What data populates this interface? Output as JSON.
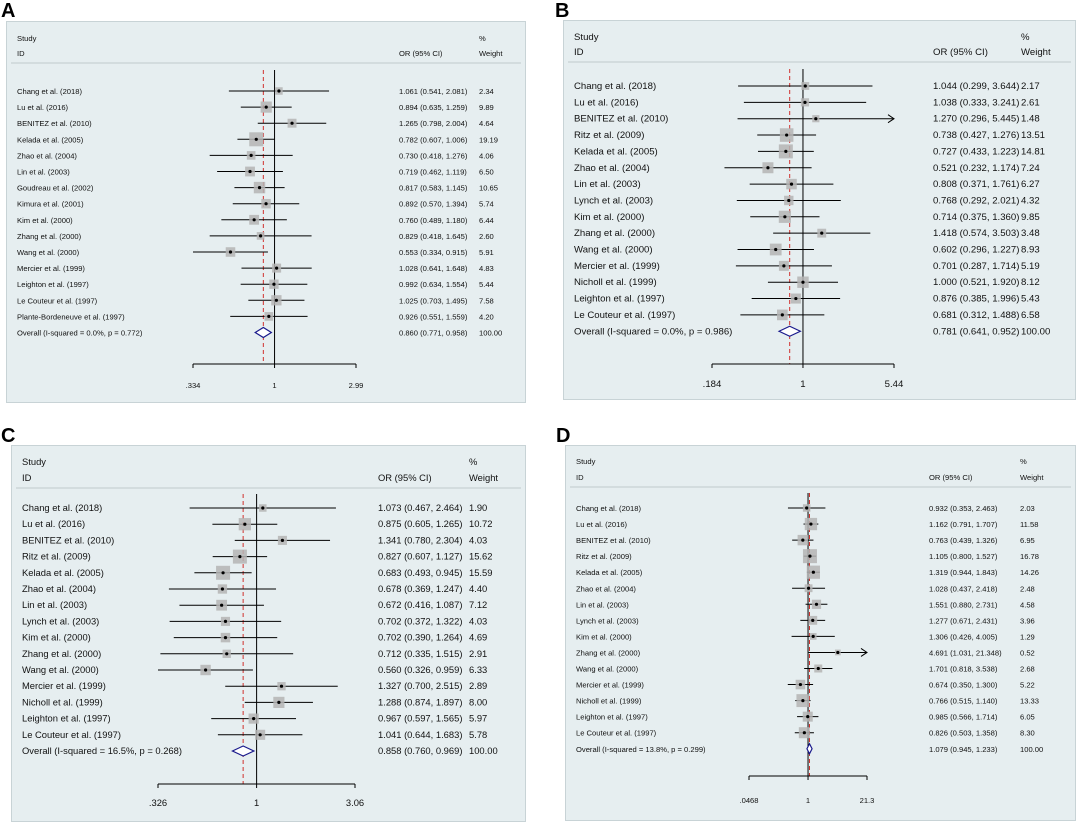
{
  "chart_data": [
    {
      "panel": "A",
      "type": "forest",
      "scale": "log",
      "header": {
        "study": "Study",
        "id": "ID",
        "or": "OR (95% CI)",
        "pct": "%",
        "weight": "Weight"
      },
      "xticks": [
        {
          "v": 0.334,
          "label": ".334"
        },
        {
          "v": 1,
          "label": "1"
        },
        {
          "v": 2.99,
          "label": "2.99"
        }
      ],
      "xlim": [
        0.334,
        2.99
      ],
      "null_line": 1,
      "pooled_line": 0.86,
      "studies": [
        {
          "id": "Chang et al. (2018)",
          "or": 1.061,
          "lo": 0.541,
          "hi": 2.081,
          "ci": "1.061 (0.541, 2.081)",
          "w": "2.34"
        },
        {
          "id": "Lu et al. (2016)",
          "or": 0.894,
          "lo": 0.635,
          "hi": 1.259,
          "ci": "0.894 (0.635, 1.259)",
          "w": "9.89"
        },
        {
          "id": "BENITEZ et al. (2010)",
          "or": 1.265,
          "lo": 0.798,
          "hi": 2.004,
          "ci": "1.265 (0.798, 2.004)",
          "w": "4.64"
        },
        {
          "id": "Kelada et al. (2005)",
          "or": 0.782,
          "lo": 0.607,
          "hi": 1.006,
          "ci": "0.782 (0.607, 1.006)",
          "w": "19.19"
        },
        {
          "id": "Zhao et al. (2004)",
          "or": 0.73,
          "lo": 0.418,
          "hi": 1.276,
          "ci": "0.730 (0.418, 1.276)",
          "w": "4.06"
        },
        {
          "id": "Lin et al. (2003)",
          "or": 0.719,
          "lo": 0.462,
          "hi": 1.119,
          "ci": "0.719 (0.462, 1.119)",
          "w": "6.50"
        },
        {
          "id": "Goudreau et al. (2002)",
          "or": 0.817,
          "lo": 0.583,
          "hi": 1.145,
          "ci": "0.817 (0.583, 1.145)",
          "w": "10.65"
        },
        {
          "id": "Kimura et al. (2001)",
          "or": 0.892,
          "lo": 0.57,
          "hi": 1.394,
          "ci": "0.892 (0.570, 1.394)",
          "w": "5.74"
        },
        {
          "id": "Kim et al. (2000)",
          "or": 0.76,
          "lo": 0.489,
          "hi": 1.18,
          "ci": "0.760 (0.489, 1.180)",
          "w": "6.44"
        },
        {
          "id": "Zhang et al. (2000)",
          "or": 0.829,
          "lo": 0.418,
          "hi": 1.645,
          "ci": "0.829 (0.418, 1.645)",
          "w": "2.60"
        },
        {
          "id": "Wang et al. (2000)",
          "or": 0.553,
          "lo": 0.334,
          "hi": 0.915,
          "ci": "0.553 (0.334, 0.915)",
          "w": "5.91"
        },
        {
          "id": "Mercier et al. (1999)",
          "or": 1.028,
          "lo": 0.641,
          "hi": 1.648,
          "ci": "1.028 (0.641, 1.648)",
          "w": "4.83"
        },
        {
          "id": "Leighton et al. (1997)",
          "or": 0.992,
          "lo": 0.634,
          "hi": 1.554,
          "ci": "0.992 (0.634, 1.554)",
          "w": "5.44"
        },
        {
          "id": "Le Couteur et al. (1997)",
          "or": 1.025,
          "lo": 0.703,
          "hi": 1.495,
          "ci": "1.025 (0.703, 1.495)",
          "w": "7.58"
        },
        {
          "id": "Plante-Bordeneuve et al. (1997)",
          "or": 0.926,
          "lo": 0.551,
          "hi": 1.559,
          "ci": "0.926 (0.551, 1.559)",
          "w": "4.20"
        }
      ],
      "overall": {
        "label": "Overall  (I-squared = 0.0%, p = 0.772)",
        "or": 0.86,
        "lo": 0.771,
        "hi": 0.958,
        "ci": "0.860 (0.771, 0.958)",
        "w": "100.00"
      }
    },
    {
      "panel": "B",
      "type": "forest",
      "scale": "log",
      "header": {
        "study": "Study",
        "id": "ID",
        "or": "OR (95% CI)",
        "pct": "%",
        "weight": "Weight"
      },
      "xticks": [
        {
          "v": 0.184,
          "label": ".184"
        },
        {
          "v": 1,
          "label": "1"
        },
        {
          "v": 5.44,
          "label": "5.44"
        }
      ],
      "xlim": [
        0.184,
        5.44
      ],
      "null_line": 1,
      "pooled_line": 0.781,
      "studies": [
        {
          "id": "Chang et al. (2018)",
          "or": 1.044,
          "lo": 0.299,
          "hi": 3.644,
          "ci": "1.044 (0.299, 3.644)",
          "w": "2.17"
        },
        {
          "id": "Lu et al. (2016)",
          "or": 1.038,
          "lo": 0.333,
          "hi": 3.241,
          "ci": "1.038 (0.333, 3.241)",
          "w": "2.61"
        },
        {
          "id": "BENITEZ et al. (2010)",
          "or": 1.27,
          "lo": 0.296,
          "hi": 5.445,
          "ci": "1.270 (0.296, 5.445)",
          "w": "1.48"
        },
        {
          "id": "Ritz et al. (2009)",
          "or": 0.738,
          "lo": 0.427,
          "hi": 1.276,
          "ci": "0.738 (0.427, 1.276)",
          "w": "13.51"
        },
        {
          "id": "Kelada et al. (2005)",
          "or": 0.727,
          "lo": 0.433,
          "hi": 1.223,
          "ci": "0.727 (0.433, 1.223)",
          "w": "14.81"
        },
        {
          "id": "Zhao et al. (2004)",
          "or": 0.521,
          "lo": 0.232,
          "hi": 1.174,
          "ci": "0.521 (0.232, 1.174)",
          "w": "7.24"
        },
        {
          "id": "Lin et al. (2003)",
          "or": 0.808,
          "lo": 0.371,
          "hi": 1.761,
          "ci": "0.808 (0.371, 1.761)",
          "w": "6.27"
        },
        {
          "id": "Lynch et al. (2003)",
          "or": 0.768,
          "lo": 0.292,
          "hi": 2.021,
          "ci": "0.768 (0.292, 2.021)",
          "w": "4.32"
        },
        {
          "id": "Kim et al. (2000)",
          "or": 0.714,
          "lo": 0.375,
          "hi": 1.36,
          "ci": "0.714 (0.375, 1.360)",
          "w": "9.85"
        },
        {
          "id": "Zhang et al. (2000)",
          "or": 1.418,
          "lo": 0.574,
          "hi": 3.503,
          "ci": "1.418 (0.574, 3.503)",
          "w": "3.48"
        },
        {
          "id": "Wang et al. (2000)",
          "or": 0.602,
          "lo": 0.296,
          "hi": 1.227,
          "ci": "0.602 (0.296, 1.227)",
          "w": "8.93"
        },
        {
          "id": "Mercier et al. (1999)",
          "or": 0.701,
          "lo": 0.287,
          "hi": 1.714,
          "ci": "0.701 (0.287, 1.714)",
          "w": "5.19"
        },
        {
          "id": "Nicholl et al. (1999)",
          "or": 1.0,
          "lo": 0.521,
          "hi": 1.92,
          "ci": "1.000 (0.521, 1.920)",
          "w": "8.12"
        },
        {
          "id": "Leighton et al. (1997)",
          "or": 0.876,
          "lo": 0.385,
          "hi": 1.996,
          "ci": "0.876 (0.385, 1.996)",
          "w": "5.43"
        },
        {
          "id": "Le Couteur et al. (1997)",
          "or": 0.681,
          "lo": 0.312,
          "hi": 1.488,
          "ci": "0.681 (0.312, 1.488)",
          "w": "6.58"
        }
      ],
      "overall": {
        "label": "Overall  (I-squared = 0.0%, p = 0.986)",
        "or": 0.781,
        "lo": 0.641,
        "hi": 0.952,
        "ci": "0.781 (0.641, 0.952)",
        "w": "100.00"
      }
    },
    {
      "panel": "C",
      "type": "forest",
      "scale": "log",
      "header": {
        "study": "Study",
        "id": "ID",
        "or": "OR (95% CI)",
        "pct": "%",
        "weight": "Weight"
      },
      "xticks": [
        {
          "v": 0.326,
          "label": ".326"
        },
        {
          "v": 1,
          "label": "1"
        },
        {
          "v": 3.06,
          "label": "3.06"
        }
      ],
      "xlim": [
        0.326,
        3.06
      ],
      "null_line": 1,
      "pooled_line": 0.858,
      "studies": [
        {
          "id": "Chang et al. (2018)",
          "or": 1.073,
          "lo": 0.467,
          "hi": 2.464,
          "ci": "1.073 (0.467, 2.464)",
          "w": "1.90"
        },
        {
          "id": "Lu et al. (2016)",
          "or": 0.875,
          "lo": 0.605,
          "hi": 1.265,
          "ci": "0.875 (0.605, 1.265)",
          "w": "10.72"
        },
        {
          "id": "BENITEZ et al. (2010)",
          "or": 1.341,
          "lo": 0.78,
          "hi": 2.304,
          "ci": "1.341 (0.780, 2.304)",
          "w": "4.03"
        },
        {
          "id": "Ritz et al. (2009)",
          "or": 0.827,
          "lo": 0.607,
          "hi": 1.127,
          "ci": "0.827 (0.607, 1.127)",
          "w": "15.62"
        },
        {
          "id": "Kelada et al. (2005)",
          "or": 0.683,
          "lo": 0.493,
          "hi": 0.945,
          "ci": "0.683 (0.493, 0.945)",
          "w": "15.59"
        },
        {
          "id": "Zhao et al. (2004)",
          "or": 0.678,
          "lo": 0.369,
          "hi": 1.247,
          "ci": "0.678 (0.369, 1.247)",
          "w": "4.40"
        },
        {
          "id": "Lin et al. (2003)",
          "or": 0.672,
          "lo": 0.416,
          "hi": 1.087,
          "ci": "0.672 (0.416, 1.087)",
          "w": "7.12"
        },
        {
          "id": "Lynch et al. (2003)",
          "or": 0.702,
          "lo": 0.372,
          "hi": 1.322,
          "ci": "0.702 (0.372, 1.322)",
          "w": "4.03"
        },
        {
          "id": "Kim et al. (2000)",
          "or": 0.702,
          "lo": 0.39,
          "hi": 1.264,
          "ci": "0.702 (0.390, 1.264)",
          "w": "4.69"
        },
        {
          "id": "Zhang et al. (2000)",
          "or": 0.712,
          "lo": 0.335,
          "hi": 1.515,
          "ci": "0.712 (0.335, 1.515)",
          "w": "2.91"
        },
        {
          "id": "Wang et al. (2000)",
          "or": 0.56,
          "lo": 0.326,
          "hi": 0.959,
          "ci": "0.560 (0.326, 0.959)",
          "w": "6.33"
        },
        {
          "id": "Mercier et al. (1999)",
          "or": 1.327,
          "lo": 0.7,
          "hi": 2.515,
          "ci": "1.327 (0.700, 2.515)",
          "w": "2.89"
        },
        {
          "id": "Nicholl et al. (1999)",
          "or": 1.288,
          "lo": 0.874,
          "hi": 1.897,
          "ci": "1.288 (0.874, 1.897)",
          "w": "8.00"
        },
        {
          "id": "Leighton et al. (1997)",
          "or": 0.967,
          "lo": 0.597,
          "hi": 1.565,
          "ci": "0.967 (0.597, 1.565)",
          "w": "5.97"
        },
        {
          "id": "Le Couteur et al. (1997)",
          "or": 1.041,
          "lo": 0.644,
          "hi": 1.683,
          "ci": "1.041 (0.644, 1.683)",
          "w": "5.78"
        }
      ],
      "overall": {
        "label": "Overall  (I-squared = 16.5%, p = 0.268)",
        "or": 0.858,
        "lo": 0.76,
        "hi": 0.969,
        "ci": "0.858 (0.760, 0.969)",
        "w": "100.00"
      }
    },
    {
      "panel": "D",
      "type": "forest",
      "scale": "log",
      "header": {
        "study": "Study",
        "id": "ID",
        "or": "OR (95% CI)",
        "pct": "%",
        "weight": "Weight"
      },
      "xticks": [
        {
          "v": 0.0468,
          "label": ".0468"
        },
        {
          "v": 1,
          "label": "1"
        },
        {
          "v": 21.3,
          "label": "21.3"
        }
      ],
      "xlim": [
        0.0468,
        21.3
      ],
      "null_line": 1,
      "pooled_line": 1.079,
      "studies": [
        {
          "id": "Chang et al. (2018)",
          "or": 0.932,
          "lo": 0.353,
          "hi": 2.463,
          "ci": "0.932 (0.353, 2.463)",
          "w": "2.03"
        },
        {
          "id": "Lu et al. (2016)",
          "or": 1.162,
          "lo": 0.791,
          "hi": 1.707,
          "ci": "1.162 (0.791, 1.707)",
          "w": "11.58"
        },
        {
          "id": "BENITEZ et al. (2010)",
          "or": 0.763,
          "lo": 0.439,
          "hi": 1.326,
          "ci": "0.763 (0.439, 1.326)",
          "w": "6.95"
        },
        {
          "id": "Ritz et al. (2009)",
          "or": 1.105,
          "lo": 0.8,
          "hi": 1.527,
          "ci": "1.105 (0.800, 1.527)",
          "w": "16.78"
        },
        {
          "id": "Kelada et al. (2005)",
          "or": 1.319,
          "lo": 0.944,
          "hi": 1.843,
          "ci": "1.319 (0.944, 1.843)",
          "w": "14.26"
        },
        {
          "id": "Zhao et al. (2004)",
          "or": 1.028,
          "lo": 0.437,
          "hi": 2.418,
          "ci": "1.028 (0.437, 2.418)",
          "w": "2.48"
        },
        {
          "id": "Lin et al. (2003)",
          "or": 1.551,
          "lo": 0.88,
          "hi": 2.731,
          "ci": "1.551 (0.880, 2.731)",
          "w": "4.58"
        },
        {
          "id": "Lynch et al. (2003)",
          "or": 1.277,
          "lo": 0.671,
          "hi": 2.431,
          "ci": "1.277 (0.671, 2.431)",
          "w": "3.96"
        },
        {
          "id": "Kim et al. (2000)",
          "or": 1.306,
          "lo": 0.426,
          "hi": 4.005,
          "ci": "1.306 (0.426, 4.005)",
          "w": "1.29"
        },
        {
          "id": "Zhang et al. (2000)",
          "or": 4.691,
          "lo": 1.031,
          "hi": 21.348,
          "ci": "4.691 (1.031, 21.348)",
          "w": "0.52"
        },
        {
          "id": "Wang et al. (2000)",
          "or": 1.701,
          "lo": 0.818,
          "hi": 3.538,
          "ci": "1.701 (0.818, 3.538)",
          "w": "2.68"
        },
        {
          "id": "Mercier et al. (1999)",
          "or": 0.674,
          "lo": 0.35,
          "hi": 1.3,
          "ci": "0.674 (0.350, 1.300)",
          "w": "5.22"
        },
        {
          "id": "Nicholl et al. (1999)",
          "or": 0.766,
          "lo": 0.515,
          "hi": 1.14,
          "ci": "0.766 (0.515, 1.140)",
          "w": "13.33"
        },
        {
          "id": "Leighton et al. (1997)",
          "or": 0.985,
          "lo": 0.566,
          "hi": 1.714,
          "ci": "0.985 (0.566, 1.714)",
          "w": "6.05"
        },
        {
          "id": "Le Couteur et al. (1997)",
          "or": 0.826,
          "lo": 0.503,
          "hi": 1.358,
          "ci": "0.826 (0.503, 1.358)",
          "w": "8.30"
        }
      ],
      "overall": {
        "label": "Overall  (I-squared = 13.8%, p = 0.299)",
        "or": 1.079,
        "lo": 0.945,
        "hi": 1.233,
        "ci": "1.079 (0.945, 1.233)",
        "w": "100.00"
      }
    }
  ]
}
